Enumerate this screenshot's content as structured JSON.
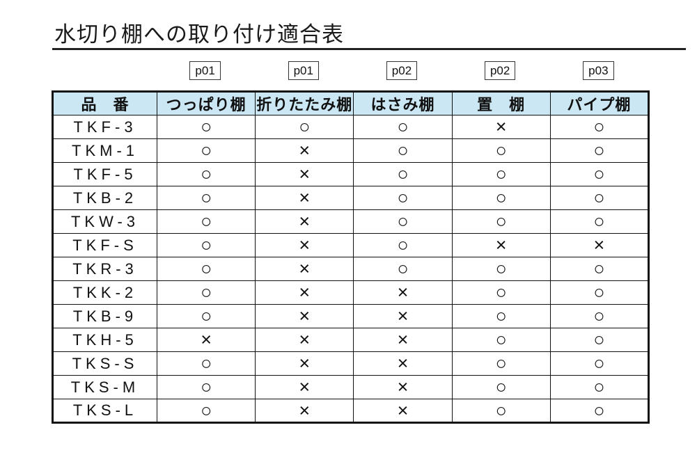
{
  "title": "水切り棚への取り付け適合表",
  "page_refs": [
    "p01",
    "p01",
    "p02",
    "p02",
    "p03"
  ],
  "table": {
    "headers": [
      "品　番",
      "つっぱり棚",
      "折りたたみ棚",
      "はさみ棚",
      "置　棚",
      "パイプ棚"
    ],
    "rows": [
      {
        "item": "TKF-3",
        "values": [
          "○",
          "○",
          "○",
          "×",
          "○"
        ]
      },
      {
        "item": "TKM-1",
        "values": [
          "○",
          "×",
          "○",
          "○",
          "○"
        ]
      },
      {
        "item": "TKF-5",
        "values": [
          "○",
          "×",
          "○",
          "○",
          "○"
        ]
      },
      {
        "item": "TKB-2",
        "values": [
          "○",
          "×",
          "○",
          "○",
          "○"
        ]
      },
      {
        "item": "TKW-3",
        "values": [
          "○",
          "×",
          "○",
          "○",
          "○"
        ]
      },
      {
        "item": "TKF-S",
        "values": [
          "○",
          "×",
          "○",
          "×",
          "×"
        ]
      },
      {
        "item": "TKR-3",
        "values": [
          "○",
          "×",
          "○",
          "○",
          "○"
        ]
      },
      {
        "item": "TKK-2",
        "values": [
          "○",
          "×",
          "×",
          "○",
          "○"
        ]
      },
      {
        "item": "TKB-9",
        "values": [
          "○",
          "×",
          "×",
          "○",
          "○"
        ]
      },
      {
        "item": "TKH-5",
        "values": [
          "×",
          "×",
          "×",
          "○",
          "○"
        ]
      },
      {
        "item": "TKS-S",
        "values": [
          "○",
          "×",
          "×",
          "○",
          "○"
        ]
      },
      {
        "item": "TKS-M",
        "values": [
          "○",
          "×",
          "×",
          "○",
          "○"
        ]
      },
      {
        "item": "TKS-L",
        "values": [
          "○",
          "×",
          "×",
          "○",
          "○"
        ]
      }
    ]
  },
  "symbols": {
    "compatible": "○",
    "incompatible": "×"
  },
  "colors": {
    "header_bg": "#cbe7f3",
    "border": "#111111",
    "text": "#111111",
    "background": "#ffffff"
  }
}
